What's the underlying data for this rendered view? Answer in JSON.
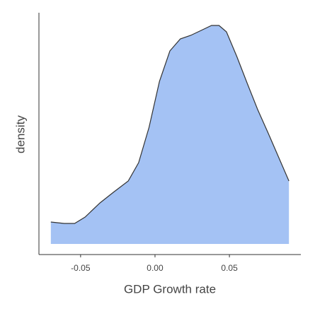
{
  "chart_data": {
    "type": "density",
    "xlabel": "GDP Growth rate",
    "ylabel": "density",
    "x": [
      -0.07,
      -0.061,
      -0.054,
      -0.047,
      -0.037,
      -0.028,
      -0.018,
      -0.011,
      -0.004,
      0.003,
      0.01,
      0.017,
      0.024,
      0.031,
      0.038,
      0.043,
      0.048,
      0.055,
      0.062,
      0.069,
      0.076,
      0.083,
      0.09
    ],
    "values": [
      0.93,
      0.87,
      0.87,
      1.14,
      1.74,
      2.19,
      2.67,
      3.45,
      4.95,
      6.9,
      8.19,
      8.7,
      8.85,
      9.06,
      9.27,
      9.27,
      9.0,
      7.95,
      6.81,
      5.7,
      4.71,
      3.69,
      2.67
    ],
    "color": "#a4c2f4",
    "line_color": "#333333",
    "xlim": [
      -0.078,
      0.098
    ],
    "xticks": [
      -0.05,
      {
        "value": 0,
        "label": "0.00"
      },
      0.05
    ],
    "ylim": [
      -0.45,
      9.81
    ],
    "grid": false
  }
}
